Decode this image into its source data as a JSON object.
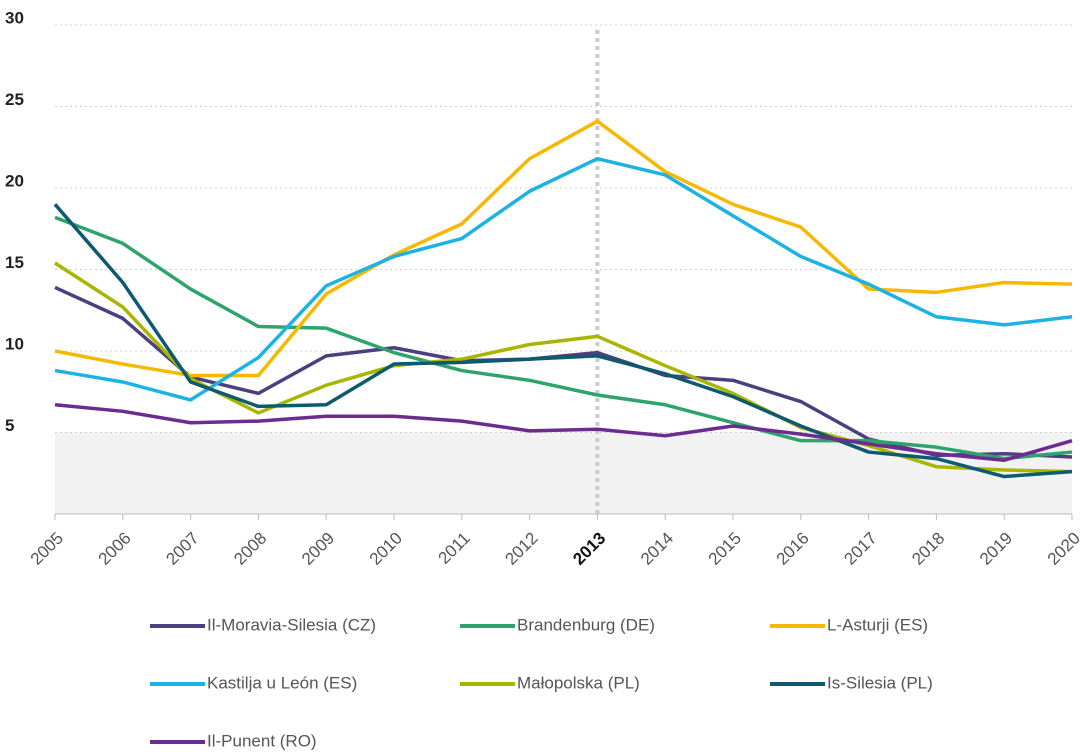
{
  "chart_data": {
    "type": "line",
    "x": [
      2005,
      2006,
      2007,
      2008,
      2009,
      2010,
      2011,
      2012,
      2013,
      2014,
      2015,
      2016,
      2017,
      2018,
      2019,
      2020
    ],
    "xlim": [
      2005,
      2020
    ],
    "xticks": [
      2005,
      2006,
      2007,
      2008,
      2009,
      2010,
      2011,
      2012,
      2013,
      2014,
      2015,
      2016,
      2017,
      2018,
      2019,
      2020
    ],
    "ylim": [
      0,
      30
    ],
    "yticks": [
      5,
      10,
      15,
      20,
      25,
      30
    ],
    "grid": true,
    "highlight_x": 2013,
    "shaded_band": [
      0,
      5
    ],
    "series": [
      {
        "name": "Il-Moravia-Silesia (CZ)",
        "color": "#4b3f80",
        "values": [
          13.9,
          12.0,
          8.4,
          7.4,
          9.7,
          10.2,
          9.4,
          9.5,
          9.9,
          8.5,
          8.2,
          6.9,
          4.6,
          3.6,
          3.7,
          3.5
        ]
      },
      {
        "name": "Brandenburg (DE)",
        "color": "#2ea36b",
        "values": [
          18.2,
          16.6,
          13.8,
          11.5,
          11.4,
          9.9,
          8.8,
          8.2,
          7.3,
          6.7,
          5.6,
          4.5,
          4.5,
          4.1,
          3.4,
          3.8
        ]
      },
      {
        "name": "L-Asturji (ES)",
        "color": "#f6b800",
        "values": [
          10.0,
          9.2,
          8.5,
          8.5,
          13.5,
          15.9,
          17.8,
          21.8,
          24.1,
          21.0,
          19.0,
          17.6,
          13.8,
          13.6,
          14.2,
          14.1
        ]
      },
      {
        "name": "Kastilja u León (ES)",
        "color": "#1cb2e3",
        "values": [
          8.8,
          8.1,
          7.0,
          9.6,
          14.0,
          15.8,
          16.9,
          19.8,
          21.8,
          20.8,
          18.3,
          15.8,
          14.1,
          12.1,
          11.6,
          12.1
        ]
      },
      {
        "name": "Małopolska (PL)",
        "color": "#a9b500",
        "values": [
          15.4,
          12.7,
          8.3,
          6.2,
          7.9,
          9.1,
          9.5,
          10.4,
          10.9,
          9.1,
          7.4,
          5.3,
          4.2,
          2.9,
          2.7,
          2.6
        ]
      },
      {
        "name": "Is-Silesia (PL)",
        "color": "#0d5a6e",
        "values": [
          19.0,
          14.2,
          8.1,
          6.6,
          6.7,
          9.2,
          9.3,
          9.5,
          9.7,
          8.6,
          7.2,
          5.4,
          3.8,
          3.4,
          2.3,
          2.6
        ]
      },
      {
        "name": "Il-Punent (RO)",
        "color": "#6b2c92",
        "values": [
          6.7,
          6.3,
          5.6,
          5.7,
          6.0,
          6.0,
          5.7,
          5.1,
          5.2,
          4.8,
          5.4,
          4.9,
          4.3,
          3.7,
          3.3,
          4.5
        ]
      }
    ]
  }
}
